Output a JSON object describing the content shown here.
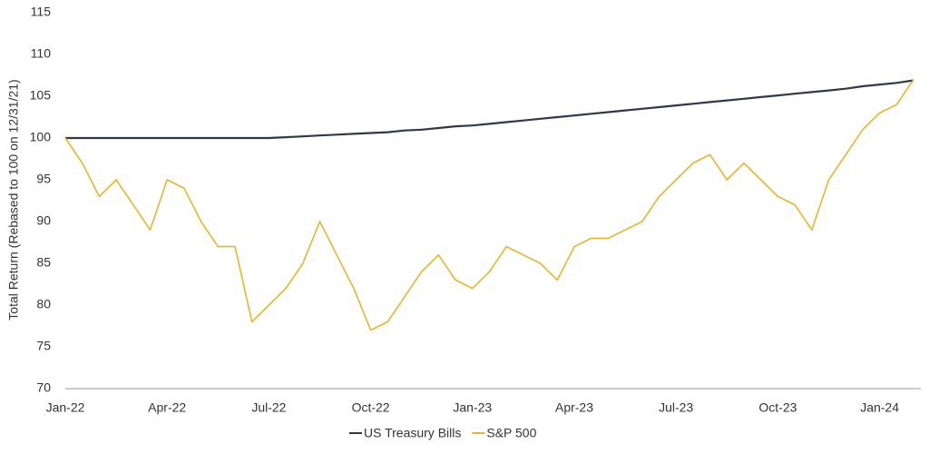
{
  "chart_data": {
    "type": "line",
    "y_label": "Total Return (Rebased to 100 on 12/31/21)",
    "categories": [
      "Jan-22",
      null,
      null,
      null,
      null,
      null,
      "Apr-22",
      null,
      null,
      null,
      null,
      null,
      "Jul-22",
      null,
      null,
      null,
      null,
      null,
      "Oct-22",
      null,
      null,
      null,
      null,
      null,
      "Jan-23",
      null,
      null,
      null,
      null,
      null,
      "Apr-23",
      null,
      null,
      null,
      null,
      null,
      "Jul-23",
      null,
      null,
      null,
      null,
      null,
      "Oct-23",
      null,
      null,
      null,
      null,
      null,
      "Jan-24",
      null,
      null
    ],
    "series": [
      {
        "name": "US Treasury Bills",
        "color": "#2e3a4a",
        "values": [
          100,
          100,
          100,
          100,
          100,
          100,
          100,
          100,
          100,
          100,
          100,
          100,
          100,
          100.1,
          100.2,
          100.3,
          100.4,
          100.5,
          100.6,
          100.7,
          100.9,
          101.0,
          101.2,
          101.4,
          101.5,
          101.7,
          101.9,
          102.1,
          102.3,
          102.5,
          102.7,
          102.9,
          103.1,
          103.3,
          103.5,
          103.7,
          103.9,
          104.1,
          104.3,
          104.5,
          104.7,
          104.9,
          105.1,
          105.3,
          105.5,
          105.7,
          105.9,
          106.2,
          106.4,
          106.6,
          106.9
        ]
      },
      {
        "name": "S&P 500",
        "color": "#e8b52a",
        "values": [
          100,
          97,
          93,
          95,
          92,
          89,
          95,
          94,
          90,
          87,
          87,
          78,
          80,
          82,
          85,
          90,
          86,
          82,
          77,
          78,
          81,
          84,
          86,
          83,
          82,
          84,
          87,
          86,
          85,
          83,
          87,
          88,
          88,
          89,
          90,
          93,
          95,
          97,
          98,
          95,
          97,
          95,
          93,
          92,
          89,
          95,
          98,
          101,
          103,
          104,
          107
        ]
      }
    ],
    "ylim": [
      70,
      115
    ],
    "yticks": [
      70,
      75,
      80,
      85,
      90,
      95,
      100,
      105,
      110,
      115
    ],
    "legend": "bottom"
  }
}
